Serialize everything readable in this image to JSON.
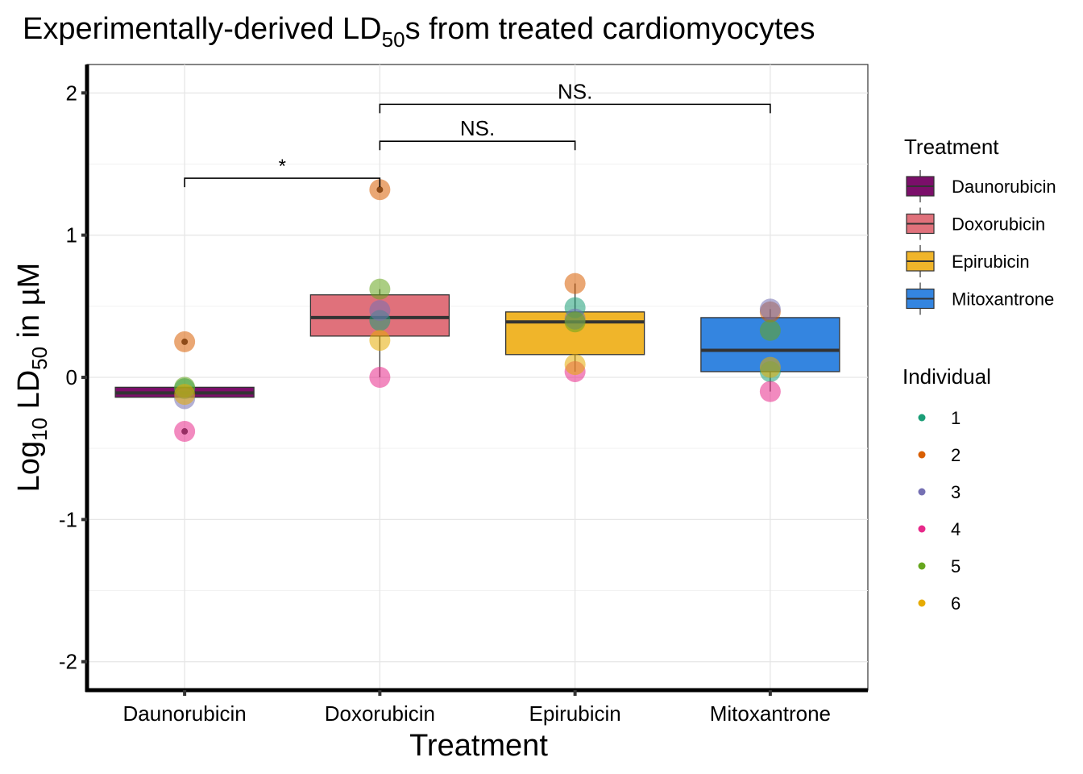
{
  "chart_data": {
    "type": "box",
    "title_main": "Experimentally-derived LD",
    "title_sub": "50",
    "title_rest": "s from treated cardiomyocytes",
    "xlabel": "Treatment",
    "ylabel_pre": "Log",
    "ylabel_sub1": "10",
    "ylabel_mid": " LD",
    "ylabel_sub2": "50",
    "ylabel_post": " in µM",
    "ylim": [
      -2.2,
      2.2
    ],
    "yticks": [
      2,
      1,
      0,
      -1,
      -2
    ],
    "ytick_labels": [
      "2",
      "1",
      "0",
      "-1",
      "-2"
    ],
    "grid": true,
    "categories": [
      "Daunorubicin",
      "Doxorubicin",
      "Epirubicin",
      "Mitoxantrone"
    ],
    "boxes": [
      {
        "name": "Daunorubicin",
        "color": "#7b0f6a",
        "q1": -0.14,
        "median": -0.11,
        "q3": -0.07,
        "whisker_low": -0.14,
        "whisker_high": -0.07,
        "outliers": [
          0.25,
          -0.38
        ]
      },
      {
        "name": "Doxorubicin",
        "color": "#e0717b",
        "q1": 0.29,
        "median": 0.42,
        "q3": 0.58,
        "whisker_low": 0.0,
        "whisker_high": 0.62,
        "outliers": [
          1.32
        ]
      },
      {
        "name": "Epirubicin",
        "color": "#f0b52a",
        "q1": 0.16,
        "median": 0.39,
        "q3": 0.46,
        "whisker_low": 0.04,
        "whisker_high": 0.66,
        "outliers": []
      },
      {
        "name": "Mitoxantrone",
        "color": "#3485e0",
        "q1": 0.04,
        "median": 0.19,
        "q3": 0.42,
        "whisker_low": -0.1,
        "whisker_high": 0.48,
        "outliers": []
      }
    ],
    "points": [
      {
        "category": "Daunorubicin",
        "individual": "1",
        "value": -0.08
      },
      {
        "category": "Daunorubicin",
        "individual": "2",
        "value": 0.25
      },
      {
        "category": "Daunorubicin",
        "individual": "3",
        "value": -0.15
      },
      {
        "category": "Daunorubicin",
        "individual": "4",
        "value": -0.38
      },
      {
        "category": "Daunorubicin",
        "individual": "5",
        "value": -0.07
      },
      {
        "category": "Daunorubicin",
        "individual": "6",
        "value": -0.12
      },
      {
        "category": "Doxorubicin",
        "individual": "1",
        "value": 0.4
      },
      {
        "category": "Doxorubicin",
        "individual": "2",
        "value": 1.32
      },
      {
        "category": "Doxorubicin",
        "individual": "3",
        "value": 0.47
      },
      {
        "category": "Doxorubicin",
        "individual": "4",
        "value": 0.0
      },
      {
        "category": "Doxorubicin",
        "individual": "5",
        "value": 0.62
      },
      {
        "category": "Doxorubicin",
        "individual": "6",
        "value": 0.26
      },
      {
        "category": "Epirubicin",
        "individual": "1",
        "value": 0.49
      },
      {
        "category": "Epirubicin",
        "individual": "2",
        "value": 0.66
      },
      {
        "category": "Epirubicin",
        "individual": "3",
        "value": 0.41
      },
      {
        "category": "Epirubicin",
        "individual": "4",
        "value": 0.04
      },
      {
        "category": "Epirubicin",
        "individual": "5",
        "value": 0.39
      },
      {
        "category": "Epirubicin",
        "individual": "6",
        "value": 0.09
      },
      {
        "category": "Mitoxantrone",
        "individual": "1",
        "value": 0.04
      },
      {
        "category": "Mitoxantrone",
        "individual": "2",
        "value": 0.46
      },
      {
        "category": "Mitoxantrone",
        "individual": "3",
        "value": 0.48
      },
      {
        "category": "Mitoxantrone",
        "individual": "4",
        "value": -0.1
      },
      {
        "category": "Mitoxantrone",
        "individual": "5",
        "value": 0.33
      },
      {
        "category": "Mitoxantrone",
        "individual": "6",
        "value": 0.07
      }
    ],
    "significance": [
      {
        "from": "Daunorubicin",
        "to": "Doxorubicin",
        "y": 1.4,
        "label": "*"
      },
      {
        "from": "Doxorubicin",
        "to": "Epirubicin",
        "y": 1.66,
        "label": "NS."
      },
      {
        "from": "Doxorubicin",
        "to": "Mitoxantrone",
        "y": 1.92,
        "label": "NS."
      }
    ],
    "legend_treatment": {
      "title": "Treatment",
      "placement": "right",
      "items": [
        {
          "label": "Daunorubicin",
          "color": "#7b0f6a"
        },
        {
          "label": "Doxorubicin",
          "color": "#e0717b"
        },
        {
          "label": "Epirubicin",
          "color": "#f0b52a"
        },
        {
          "label": "Mitoxantrone",
          "color": "#3485e0"
        }
      ]
    },
    "legend_individual": {
      "title": "Individual",
      "placement": "right",
      "items": [
        {
          "label": "1",
          "color": "#1b9e77"
        },
        {
          "label": "2",
          "color": "#d95f02"
        },
        {
          "label": "3",
          "color": "#7570b3"
        },
        {
          "label": "4",
          "color": "#e7298a"
        },
        {
          "label": "5",
          "color": "#66a61e"
        },
        {
          "label": "6",
          "color": "#e6ab02"
        }
      ]
    }
  }
}
